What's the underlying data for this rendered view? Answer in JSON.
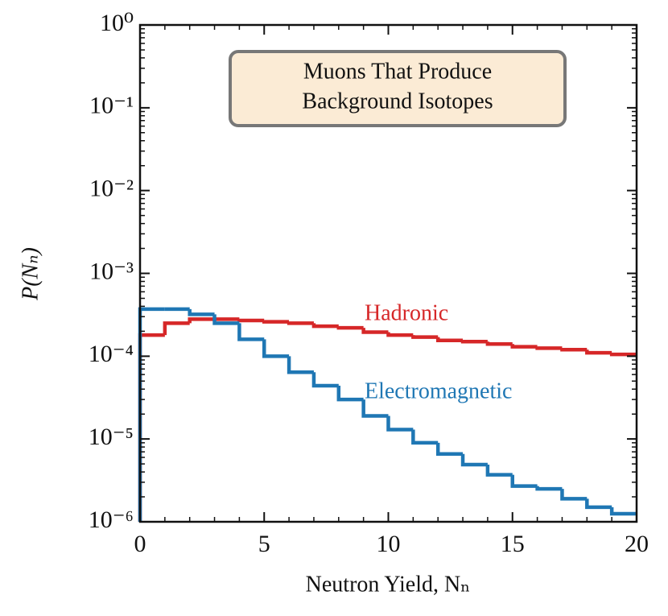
{
  "chart_data": {
    "type": "histogram",
    "title_box": [
      "Muons That Produce",
      "Background Isotopes"
    ],
    "xlabel": "Neutron Yield, Nₙ",
    "ylabel": "P(Nₙ)",
    "bins": [
      0,
      1,
      2,
      3,
      4,
      5,
      6,
      7,
      8,
      9,
      10,
      11,
      12,
      13,
      14,
      15,
      16,
      17,
      18,
      19,
      20
    ],
    "series": [
      {
        "name": "Hadronic",
        "color": "#d62728",
        "values": [
          0.00018,
          0.00025,
          0.00028,
          0.00028,
          0.00027,
          0.00026,
          0.00025,
          0.00023,
          0.00022,
          0.000195,
          0.00018,
          0.00017,
          0.000155,
          0.00015,
          0.00014,
          0.00013,
          0.000125,
          0.00012,
          0.00011,
          0.000105
        ]
      },
      {
        "name": "Electromagnetic",
        "color": "#1f77b4",
        "values": [
          0.00037,
          0.00037,
          0.00032,
          0.00025,
          0.00016,
          0.0001,
          6.4e-05,
          4.4e-05,
          3e-05,
          1.9e-05,
          1.3e-05,
          9e-06,
          6.6e-06,
          4.9e-06,
          3.7e-06,
          2.7e-06,
          2.5e-06,
          1.9e-06,
          1.5e-06,
          1.25e-06
        ]
      }
    ],
    "xlim": [
      0,
      20
    ],
    "xticks": [
      0,
      5,
      10,
      15,
      20
    ],
    "ylim": [
      1e-06,
      1
    ],
    "log_y": true,
    "yticks": [
      {
        "value": 1e-06,
        "label": "10⁻⁶"
      },
      {
        "value": 1e-05,
        "label": "10⁻⁵"
      },
      {
        "value": 0.0001,
        "label": "10⁻⁴"
      },
      {
        "value": 0.001,
        "label": "10⁻³"
      },
      {
        "value": 0.01,
        "label": "10⁻²"
      },
      {
        "value": 0.1,
        "label": "10⁻¹"
      },
      {
        "value": 1,
        "label": "10⁰"
      }
    ]
  }
}
